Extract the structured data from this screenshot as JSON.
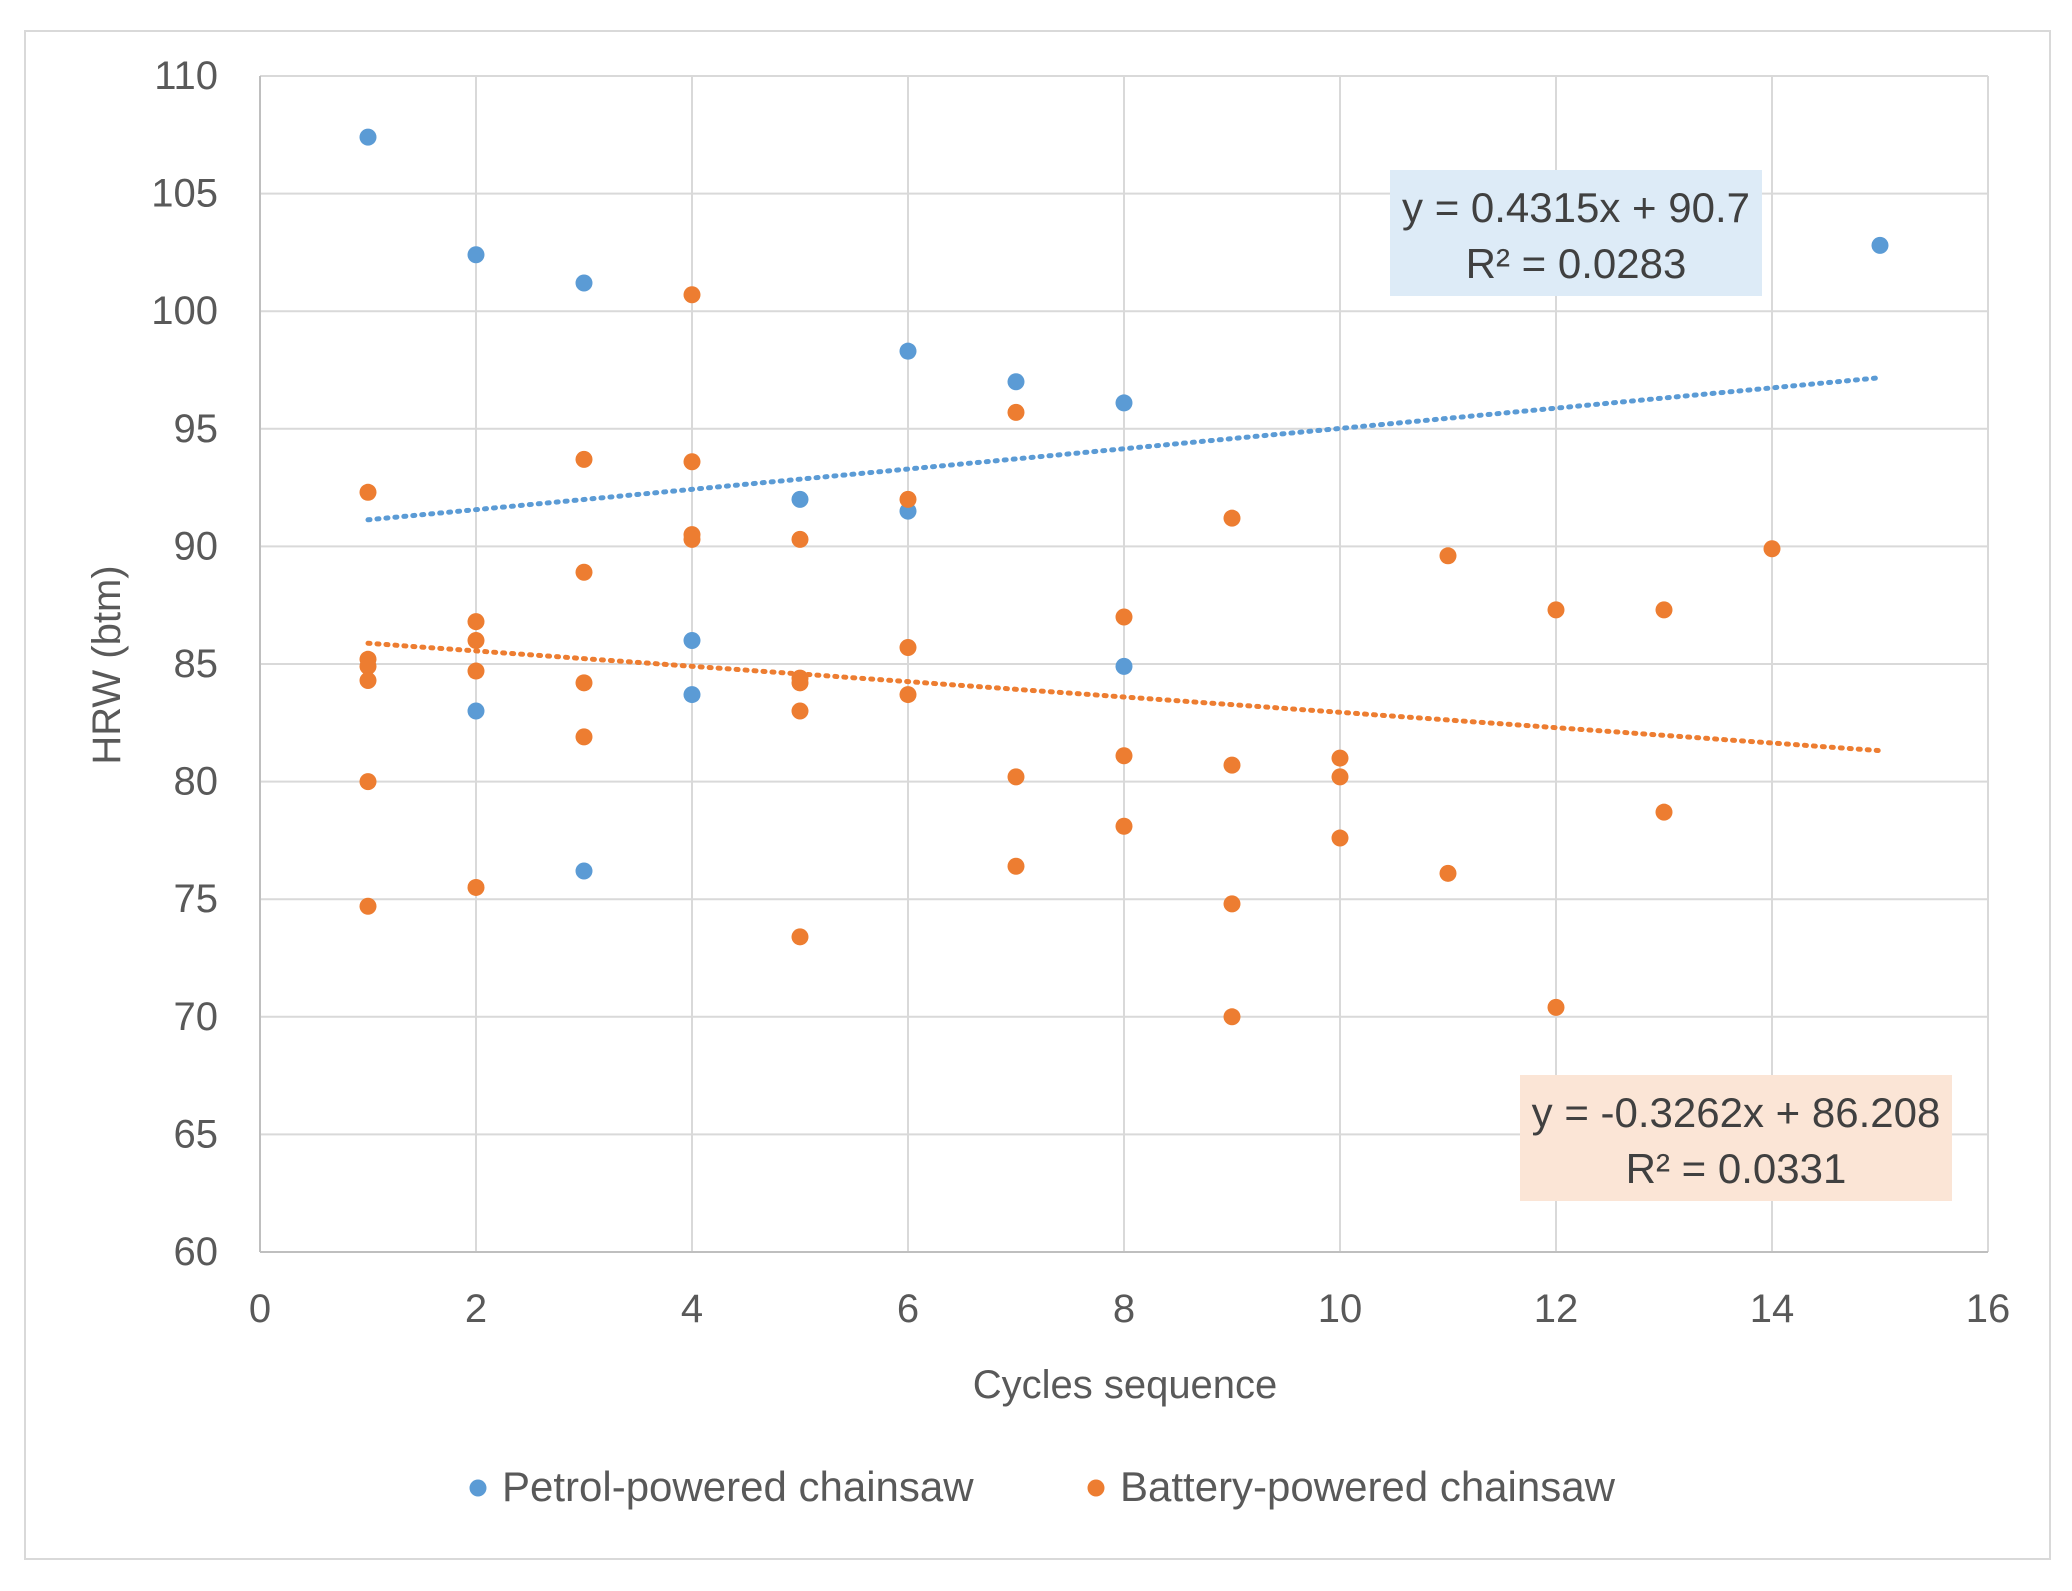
{
  "chart_data": {
    "type": "scatter",
    "title": "",
    "xlabel": "Cycles sequence",
    "ylabel": "HRW (btm)",
    "xlim": [
      0,
      16
    ],
    "ylim": [
      60,
      110
    ],
    "x_ticks": [
      "0",
      "2",
      "4",
      "6",
      "8",
      "10",
      "12",
      "14",
      "16"
    ],
    "y_ticks": [
      "60",
      "65",
      "70",
      "75",
      "80",
      "85",
      "90",
      "95",
      "100",
      "105",
      "110"
    ],
    "grid": true,
    "legend_position": "bottom",
    "series": [
      {
        "name": "Petrol-powered chainsaw",
        "color": "#5B9BD5",
        "points": [
          [
            1,
            107.4
          ],
          [
            2,
            102.4
          ],
          [
            2,
            83.0
          ],
          [
            3,
            101.2
          ],
          [
            3,
            76.2
          ],
          [
            4,
            86.0
          ],
          [
            4,
            83.7
          ],
          [
            5,
            92.0
          ],
          [
            6,
            98.3
          ],
          [
            6,
            91.5
          ],
          [
            7,
            97.0
          ],
          [
            8,
            96.1
          ],
          [
            8,
            84.9
          ],
          [
            15,
            102.8
          ]
        ],
        "trendline": {
          "slope": 0.4315,
          "intercept": 90.7,
          "x_range": [
            1,
            15
          ],
          "equation": "y = 0.4315x + 90.7",
          "r2": "R² = 0.0283",
          "label_bg": "#DDEBF7"
        }
      },
      {
        "name": "Battery-powered chainsaw",
        "color": "#ED7D31",
        "points": [
          [
            1,
            92.3
          ],
          [
            1,
            85.2
          ],
          [
            1,
            84.9
          ],
          [
            1,
            84.3
          ],
          [
            1,
            80.0
          ],
          [
            1,
            74.7
          ],
          [
            2,
            86.8
          ],
          [
            2,
            86.0
          ],
          [
            2,
            84.7
          ],
          [
            2,
            75.5
          ],
          [
            3,
            93.7
          ],
          [
            3,
            88.9
          ],
          [
            3,
            84.2
          ],
          [
            3,
            81.9
          ],
          [
            4,
            100.7
          ],
          [
            4,
            93.6
          ],
          [
            4,
            90.5
          ],
          [
            4,
            90.3
          ],
          [
            5,
            90.3
          ],
          [
            5,
            84.4
          ],
          [
            5,
            84.2
          ],
          [
            5,
            83.0
          ],
          [
            5,
            73.4
          ],
          [
            6,
            92.0
          ],
          [
            6,
            85.7
          ],
          [
            6,
            83.7
          ],
          [
            7,
            95.7
          ],
          [
            7,
            80.2
          ],
          [
            7,
            76.4
          ],
          [
            8,
            87.0
          ],
          [
            8,
            81.1
          ],
          [
            8,
            78.1
          ],
          [
            9,
            91.2
          ],
          [
            9,
            80.7
          ],
          [
            9,
            74.8
          ],
          [
            9,
            70.0
          ],
          [
            10,
            81.0
          ],
          [
            10,
            80.2
          ],
          [
            10,
            77.6
          ],
          [
            11,
            89.6
          ],
          [
            11,
            76.1
          ],
          [
            12,
            87.3
          ],
          [
            12,
            70.4
          ],
          [
            13,
            87.3
          ],
          [
            13,
            78.7
          ],
          [
            14,
            89.9
          ]
        ],
        "trendline": {
          "slope": -0.3262,
          "intercept": 86.208,
          "x_range": [
            1,
            15
          ],
          "equation": "y = -0.3262x + 86.208",
          "r2": "R² = 0.0331",
          "label_bg": "#FBE5D6"
        }
      }
    ]
  }
}
